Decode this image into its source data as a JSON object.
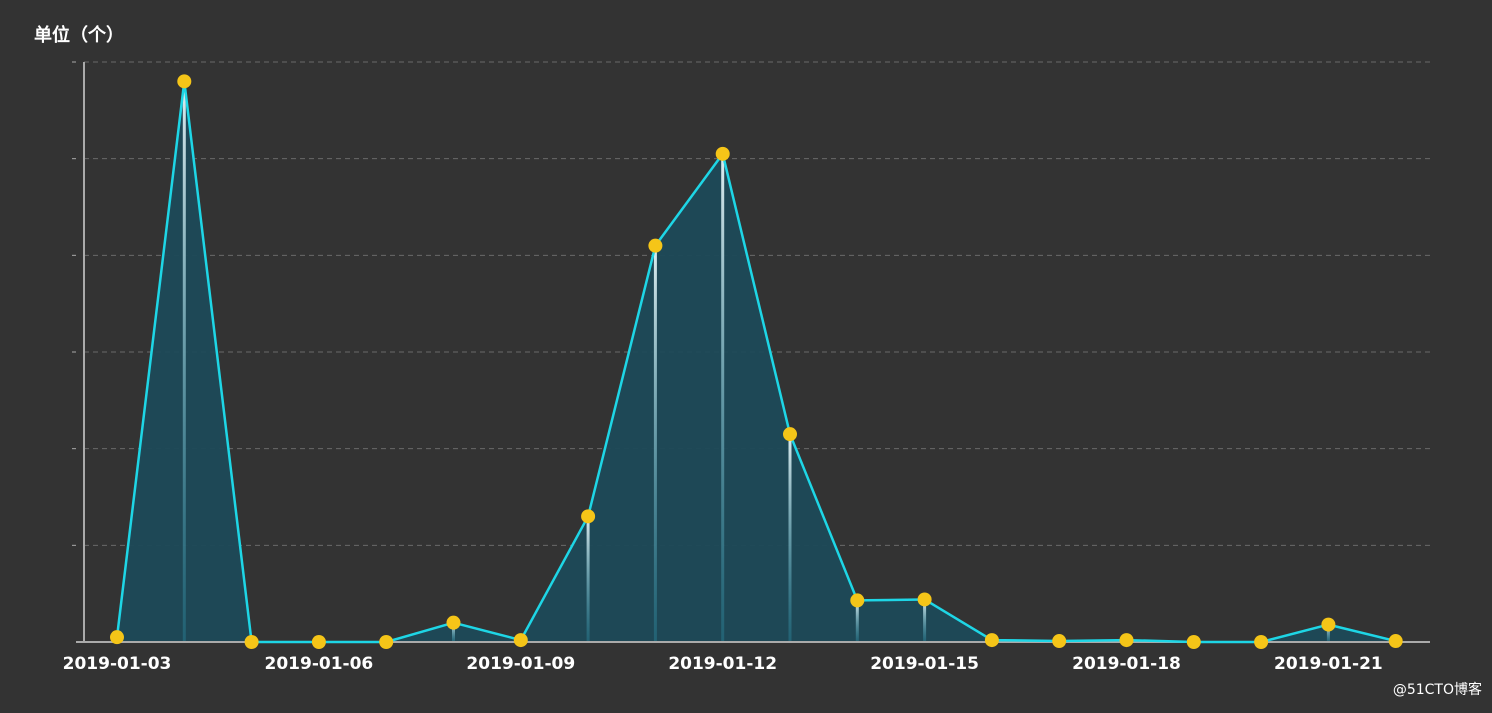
{
  "chart_data": {
    "type": "area",
    "y_unit_label": "单位（个）",
    "x": [
      "2019-01-03",
      "2019-01-04",
      "2019-01-05",
      "2019-01-06",
      "2019-01-07",
      "2019-01-08",
      "2019-01-09",
      "2019-01-10",
      "2019-01-11",
      "2019-01-12",
      "2019-01-13",
      "2019-01-14",
      "2019-01-15",
      "2019-01-16",
      "2019-01-17",
      "2019-01-18",
      "2019-01-19",
      "2019-01-20",
      "2019-01-21",
      "2019-01-22"
    ],
    "x_tick_labels": [
      "2019-01-03",
      "2019-01-06",
      "2019-01-09",
      "2019-01-12",
      "2019-01-15",
      "2019-01-18",
      "2019-01-21"
    ],
    "values": [
      0.5,
      58,
      0,
      0,
      0,
      2,
      0.2,
      13,
      41,
      50.5,
      21.5,
      4.3,
      4.4,
      0.2,
      0.1,
      0.2,
      0,
      0,
      1.8,
      0.1
    ],
    "ylim": [
      0,
      60
    ],
    "grid": true,
    "y_tick_labels_shown": false,
    "legend": "none",
    "colors": {
      "background": "#333333",
      "line": "#1ed6e6",
      "area": "#1e4a58",
      "marker": "#f5c518",
      "grid": "#6a6a6a",
      "axis": "#aaaaaa",
      "text": "#ffffff"
    }
  },
  "watermark": "@51CTO博客"
}
